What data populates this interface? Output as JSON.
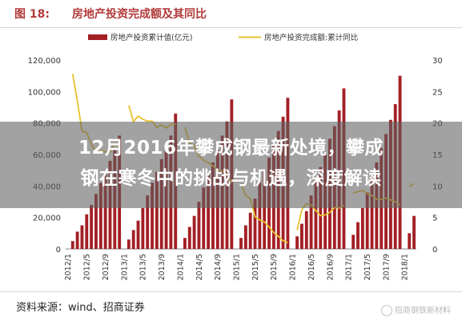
{
  "header": {
    "figure_label": "图 18:",
    "figure_title": "房地产投资完成额及其同比"
  },
  "overlay": {
    "line1": "12月2016年攀成钢最新处境，攀成",
    "line2": "钢在寒冬中的挑战与机遇，深度解读"
  },
  "footer": {
    "source": "资料来源：wind、招商证券",
    "watermark": "招商钢铁新材料"
  },
  "colors": {
    "bar": "#a31f24",
    "line": "#e8c12e",
    "title": "#b23a3a"
  },
  "chart_data": {
    "type": "bar",
    "legend_placement": "top",
    "grid": false,
    "y_left": {
      "min": 0,
      "max": 120000,
      "ticks": [
        "0",
        "20,000",
        "40,000",
        "60,000",
        "80,000",
        "100,000",
        "120,000"
      ]
    },
    "y_right": {
      "min": 0,
      "max": 30,
      "ticks": [
        "0",
        "5",
        "10",
        "15",
        "20",
        "25",
        "30"
      ]
    },
    "x_ticks": [
      "2012/1",
      "2012/5",
      "2012/9",
      "2013/1",
      "2013/5",
      "2013/9",
      "2014/1",
      "2014/5",
      "2014/9",
      "2015/1",
      "2015/5",
      "2015/9",
      "2016/1",
      "2016/5",
      "2016/9",
      "2017/1",
      "2017/5",
      "2017/9",
      "2018/1"
    ],
    "categories": [
      "2012/1",
      "2012/2",
      "2012/3",
      "2012/4",
      "2012/5",
      "2012/6",
      "2012/7",
      "2012/8",
      "2012/9",
      "2012/10",
      "2012/11",
      "2012/12",
      "2013/1",
      "2013/2",
      "2013/3",
      "2013/4",
      "2013/5",
      "2013/6",
      "2013/7",
      "2013/8",
      "2013/9",
      "2013/10",
      "2013/11",
      "2013/12",
      "2014/1",
      "2014/2",
      "2014/3",
      "2014/4",
      "2014/5",
      "2014/6",
      "2014/7",
      "2014/8",
      "2014/9",
      "2014/10",
      "2014/11",
      "2014/12",
      "2015/1",
      "2015/2",
      "2015/3",
      "2015/4",
      "2015/5",
      "2015/6",
      "2015/7",
      "2015/8",
      "2015/9",
      "2015/10",
      "2015/11",
      "2015/12",
      "2016/1",
      "2016/2",
      "2016/3",
      "2016/4",
      "2016/5",
      "2016/6",
      "2016/7",
      "2016/8",
      "2016/9",
      "2016/10",
      "2016/11",
      "2016/12",
      "2017/1",
      "2017/2",
      "2017/3",
      "2017/4",
      "2017/5",
      "2017/6",
      "2017/7",
      "2017/8",
      "2017/9",
      "2017/10",
      "2017/11",
      "2017/12",
      "2018/1",
      "2018/2",
      "2018/3"
    ],
    "series": [
      {
        "name": "房地产投资累计值(亿元)",
        "axis": "left",
        "kind": "bar",
        "values": [
          null,
          5000,
          11000,
          15000,
          22000,
          28000,
          35000,
          42000,
          49000,
          56000,
          64000,
          72000,
          null,
          6000,
          12000,
          18000,
          26000,
          34000,
          42000,
          49000,
          57000,
          64000,
          72000,
          86000,
          null,
          7000,
          14000,
          21000,
          30000,
          39000,
          48000,
          55000,
          63000,
          72000,
          81000,
          95000,
          null,
          7000,
          15000,
          23000,
          32000,
          42000,
          50000,
          58000,
          66000,
          75000,
          84000,
          96000,
          null,
          8000,
          16000,
          24000,
          34000,
          44000,
          52000,
          60000,
          70000,
          78000,
          88000,
          102000,
          null,
          9000,
          17000,
          26000,
          36000,
          46000,
          55000,
          64000,
          73000,
          82000,
          92000,
          110000,
          null,
          10000,
          21000
        ]
      },
      {
        "name": "房地产投资完成额:累计同比",
        "axis": "right",
        "kind": "line",
        "values": [
          null,
          27.8,
          23.5,
          18.7,
          18.5,
          16.6,
          15.4,
          15.6,
          15.4,
          15.4,
          16.7,
          16.2,
          null,
          22.8,
          20.2,
          21.1,
          20.6,
          20.3,
          20.3,
          19.3,
          19.7,
          19.2,
          19.8,
          19.8,
          null,
          19.3,
          16.8,
          16.4,
          14.7,
          14.1,
          13.7,
          13.2,
          12.5,
          12.4,
          11.9,
          10.5,
          null,
          10.4,
          8.5,
          8.0,
          5.1,
          4.6,
          4.3,
          3.5,
          2.6,
          2.0,
          1.3,
          1.0,
          null,
          3.0,
          6.2,
          7.2,
          7.0,
          6.1,
          5.3,
          5.4,
          5.8,
          6.6,
          6.5,
          6.9,
          null,
          8.9,
          9.1,
          9.3,
          8.8,
          8.5,
          7.9,
          7.9,
          8.1,
          7.8,
          7.5,
          7.0,
          null,
          9.9,
          10.4
        ]
      }
    ]
  }
}
